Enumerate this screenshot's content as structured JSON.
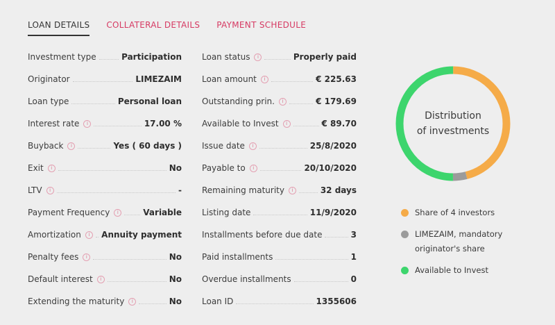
{
  "tabs": [
    {
      "label": "LOAN DETAILS",
      "active": true
    },
    {
      "label": "COLLATERAL DETAILS",
      "active": false
    },
    {
      "label": "PAYMENT SCHEDULE",
      "active": false
    }
  ],
  "info_glyph": "i",
  "left_details": [
    {
      "label": "Investment type",
      "value": "Participation",
      "info": false
    },
    {
      "label": "Originator",
      "value": "LIMEZAIM",
      "info": false
    },
    {
      "label": "Loan type",
      "value": "Personal loan",
      "info": false
    },
    {
      "label": "Interest rate",
      "value": "17.00 %",
      "info": true
    },
    {
      "label": "Buyback",
      "value": "Yes ( 60 days )",
      "info": true
    },
    {
      "label": "Exit",
      "value": "No",
      "info": true
    },
    {
      "label": "LTV",
      "value": "-",
      "info": true
    },
    {
      "label": "Payment Frequency",
      "value": "Variable",
      "info": true
    },
    {
      "label": "Amortization",
      "value": "Annuity payment",
      "info": true
    },
    {
      "label": "Penalty fees",
      "value": "No",
      "info": true
    },
    {
      "label": "Default interest",
      "value": "No",
      "info": true
    },
    {
      "label": "Extending the maturity",
      "value": "No",
      "info": true
    }
  ],
  "right_details": [
    {
      "label": "Loan status",
      "value": "Properly paid",
      "info": true
    },
    {
      "label": "Loan amount",
      "value": "€ 225.63",
      "info": true
    },
    {
      "label": "Outstanding prin.",
      "value": "€ 179.69",
      "info": true
    },
    {
      "label": "Available to Invest",
      "value": "€ 89.70",
      "info": true
    },
    {
      "label": "Issue date",
      "value": "25/8/2020",
      "info": true
    },
    {
      "label": "Payable to",
      "value": "20/10/2020",
      "info": true
    },
    {
      "label": "Remaining maturity",
      "value": "32 days",
      "info": true
    },
    {
      "label": "Listing date",
      "value": "11/9/2020",
      "info": false
    },
    {
      "label": "Installments before due date",
      "value": "3",
      "info": false
    },
    {
      "label": "Paid installments",
      "value": "1",
      "info": false
    },
    {
      "label": "Overdue installments",
      "value": "0",
      "info": false
    },
    {
      "label": "Loan ID",
      "value": "1355606",
      "info": false
    }
  ],
  "distribution": {
    "title": "Distribution\nof investments",
    "segments": [
      {
        "label": "Share of 4 investors",
        "fraction": 0.46,
        "color": "#f5ab48"
      },
      {
        "label": "LIMEZAIM, mandatory originator's share",
        "fraction": 0.04,
        "color": "#9b9b9b"
      },
      {
        "label": "Available to Invest",
        "fraction": 0.5,
        "color": "#3dd56d"
      }
    ]
  }
}
